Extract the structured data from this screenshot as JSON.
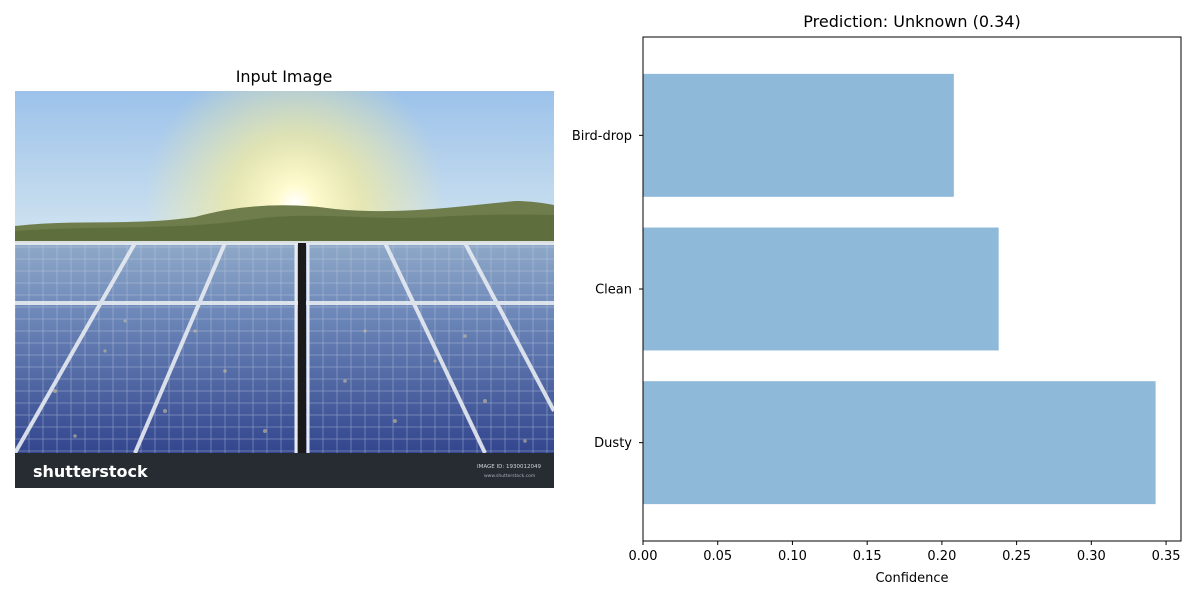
{
  "figure": {
    "left_title": "Input Image",
    "right_title": "Prediction: Unknown (0.34)"
  },
  "image_panel": {
    "watermark_brand": "shutterstock",
    "watermark_id": "IMAGE ID: 1930012049",
    "watermark_site": "www.shutterstock.com"
  },
  "chart_data": {
    "type": "bar",
    "orientation": "horizontal",
    "title": "Prediction: Unknown (0.34)",
    "xlabel": "Confidence",
    "ylabel": "",
    "categories": [
      "Dusty",
      "Clean",
      "Bird-drop"
    ],
    "values": [
      0.343,
      0.238,
      0.208
    ],
    "xlim": [
      0,
      0.36
    ],
    "xticks": [
      "0.00",
      "0.05",
      "0.10",
      "0.15",
      "0.20",
      "0.25",
      "0.30",
      "0.35"
    ],
    "bar_color": "#8fb9d8",
    "grid": false
  }
}
